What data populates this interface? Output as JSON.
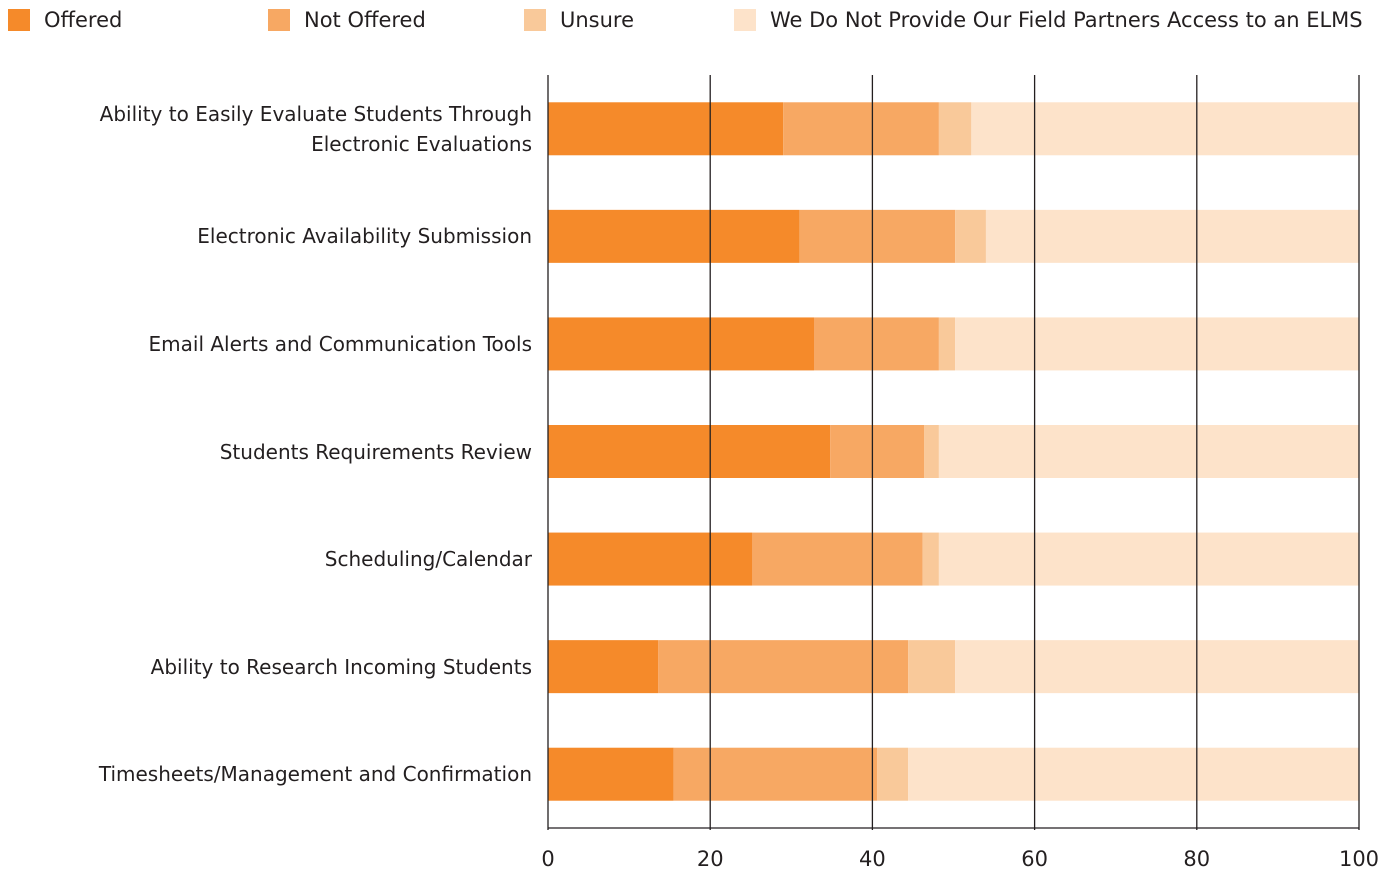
{
  "chart_data": {
    "type": "stacked_bar_horizontal",
    "categories": [
      "Ability to Easily Evaluate Students Through Electronic Evaluations",
      "Electronic Availability Submission",
      "Email Alerts and Communication Tools",
      "Students Requirements Review",
      "Scheduling/Calendar",
      "Ability to Research Incoming Students",
      "Timesheets/Management and Confirmation"
    ],
    "series": [
      {
        "name": "Offered",
        "color": "#f58a2a",
        "values": [
          29.0,
          31.0,
          32.8,
          34.8,
          25.2,
          13.6,
          15.5
        ]
      },
      {
        "name": "Not Offered",
        "color": "#f7a863",
        "values": [
          19.2,
          19.2,
          15.4,
          11.6,
          21.0,
          30.8,
          25.1
        ]
      },
      {
        "name": "Unsure",
        "color": "#f9c99a",
        "values": [
          4.0,
          3.8,
          2.0,
          1.8,
          2.0,
          5.8,
          3.8
        ]
      },
      {
        "name": "We Do Not Provide Our Field Partners Access to an ELMS",
        "color": "#fde3ca",
        "values": [
          47.8,
          46.0,
          49.8,
          51.8,
          51.8,
          49.8,
          55.6
        ]
      }
    ],
    "xlim": [
      0,
      100
    ],
    "xticks": [
      0,
      20,
      40,
      60,
      80,
      100
    ],
    "grid": true,
    "legend": "top"
  }
}
